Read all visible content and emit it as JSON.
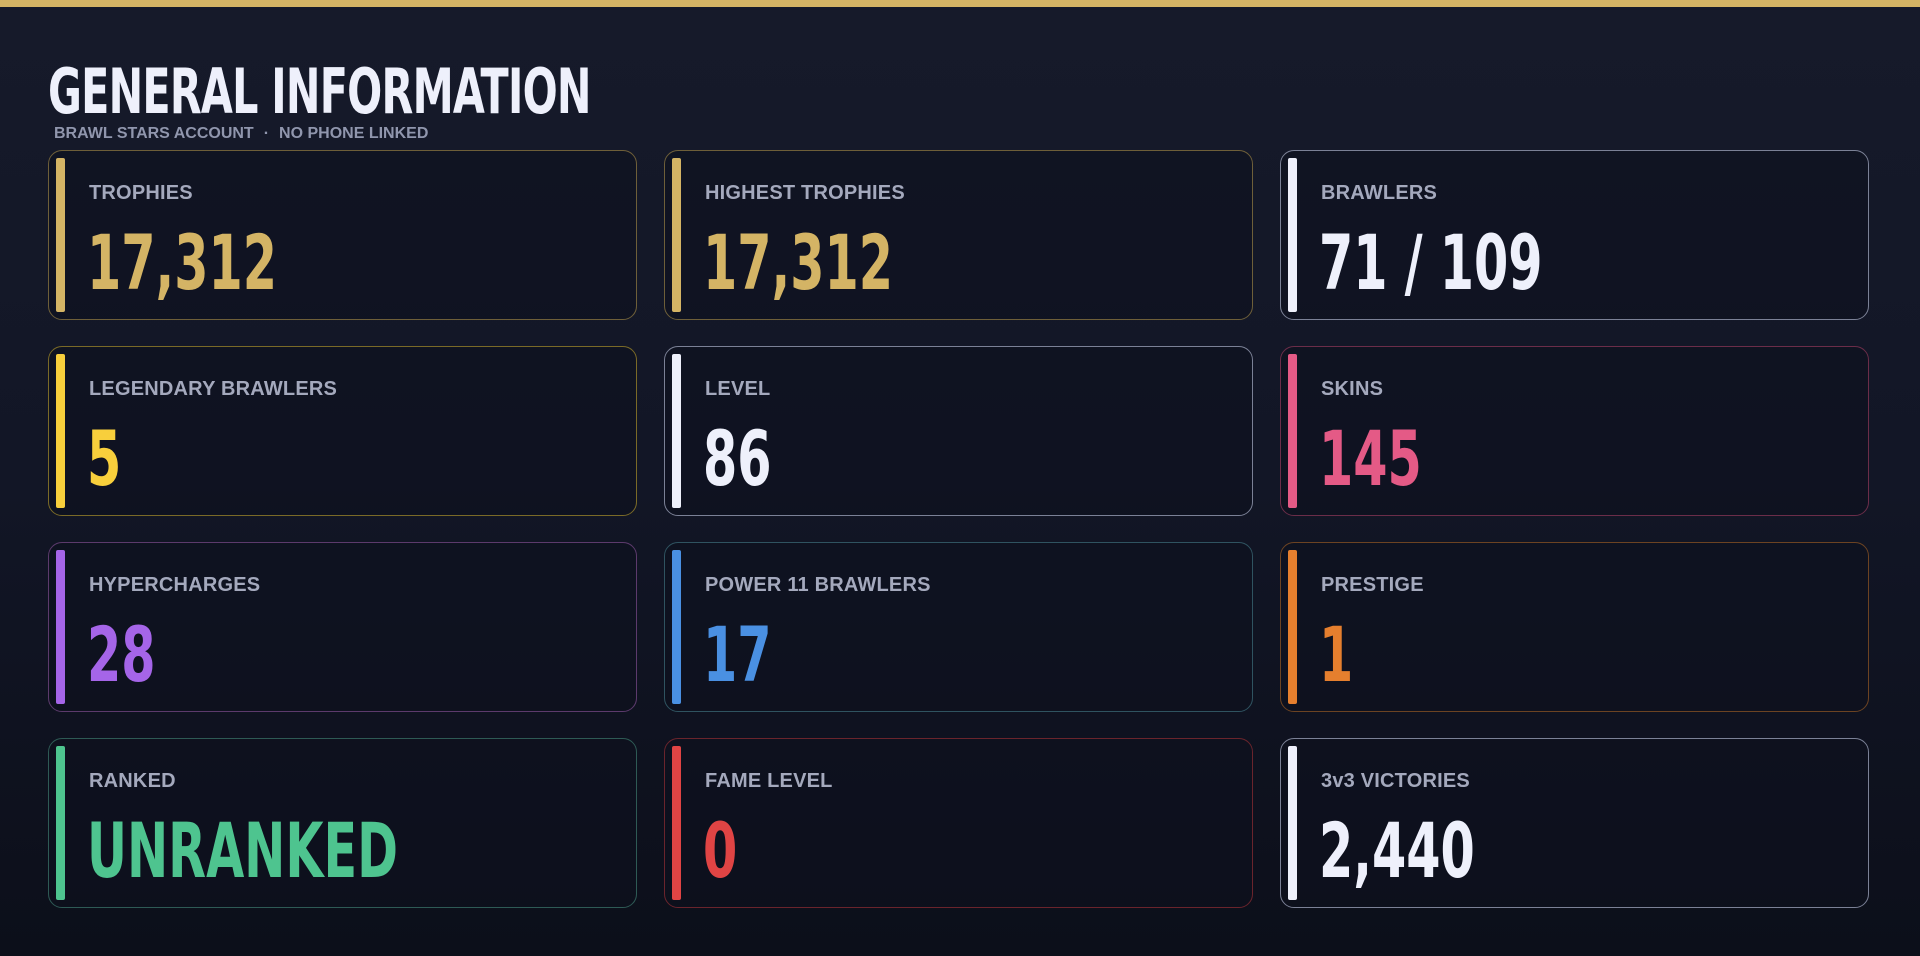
{
  "header": {
    "title": "GENERAL INFORMATION",
    "subtitle_account": "BRAWL STARS ACCOUNT",
    "subtitle_separator": "·",
    "subtitle_phone": "NO PHONE LINKED"
  },
  "colors": {
    "top_bar": "#d4b465",
    "background": "#121626",
    "label_text": "#a4a9bd",
    "gold": "#d4b465",
    "white": "#eef0fb",
    "yellow": "#f8cf3c",
    "pink": "#e45a86",
    "purple": "#a565e8",
    "blue": "#4a90e2",
    "orange": "#e57f2e",
    "green": "#4ec48f",
    "red": "#e04444"
  },
  "cards": [
    {
      "label": "TROPHIES",
      "value": "17,312",
      "theme": "gold"
    },
    {
      "label": "HIGHEST TROPHIES",
      "value": "17,312",
      "theme": "gold"
    },
    {
      "label": "BRAWLERS",
      "value": "71 / 109",
      "theme": "white"
    },
    {
      "label": "LEGENDARY BRAWLERS",
      "value": "5",
      "theme": "yellow"
    },
    {
      "label": "LEVEL",
      "value": "86",
      "theme": "white"
    },
    {
      "label": "SKINS",
      "value": "145",
      "theme": "pink"
    },
    {
      "label": "HYPERCHARGES",
      "value": "28",
      "theme": "purple"
    },
    {
      "label": "POWER 11 BRAWLERS",
      "value": "17",
      "theme": "blue"
    },
    {
      "label": "PRESTIGE",
      "value": "1",
      "theme": "orange"
    },
    {
      "label": "RANKED",
      "value": "UNRANKED",
      "theme": "green"
    },
    {
      "label": "FAME LEVEL",
      "value": "0",
      "theme": "red"
    },
    {
      "label": "3v3 VICTORIES",
      "value": "2,440",
      "theme": "white"
    }
  ]
}
